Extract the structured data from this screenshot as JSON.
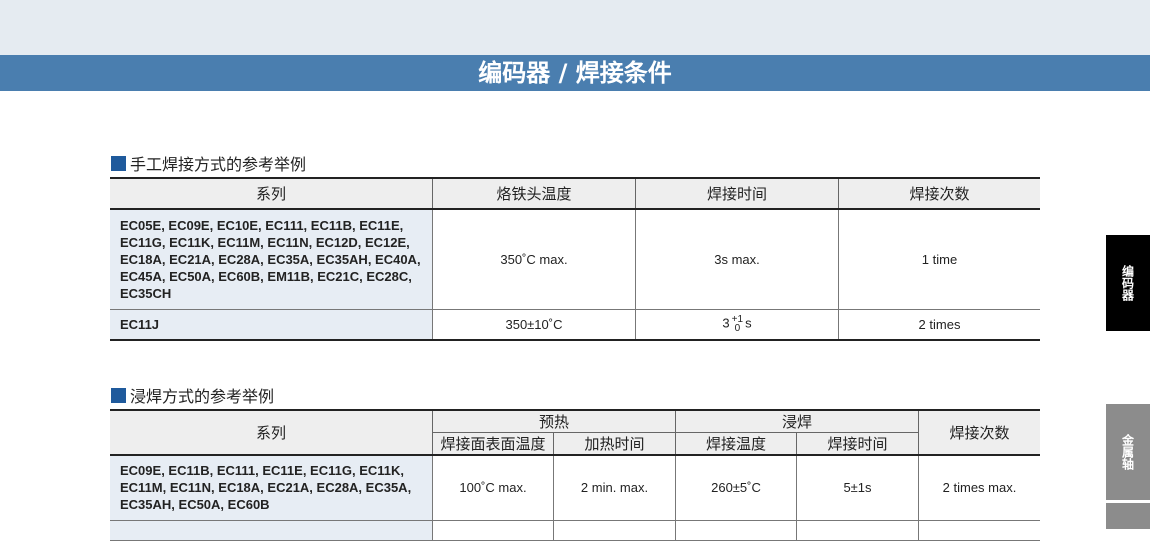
{
  "header": {
    "title": "编码器 / 焊接条件"
  },
  "section1": {
    "title": "手工焊接方式的参考举例",
    "columns": [
      "系列",
      "烙铁头温度",
      "焊接时间",
      "焊接次数"
    ],
    "rows": [
      {
        "series": "EC05E, EC09E, EC10E, EC111, EC11B, EC11E, EC11G, EC11K, EC11M, EC11N, EC12D, EC12E, EC18A, EC21A, EC28A, EC35A, EC35AH, EC40A, EC45A, EC50A, EC60B, EM11B, EC21C, EC28C, EC35CH",
        "temp": "350˚C max.",
        "time": "3s max.",
        "count": "1 time"
      },
      {
        "series": "EC11J",
        "temp": "350±10˚C",
        "time_base": "3",
        "time_sup": "+1",
        "time_sub": "0",
        "time_unit": "s",
        "count": "2 times"
      }
    ]
  },
  "section2": {
    "title": "浸焊方式的参考举例",
    "columns": {
      "series": "系列",
      "preheat": "预热",
      "dip": "浸焊",
      "count": "焊接次数",
      "pre_temp": "焊接面表面温度",
      "pre_time": "加热时间",
      "dip_temp": "焊接温度",
      "dip_time": "焊接时间"
    },
    "rows": [
      {
        "series": "EC09E, EC11B, EC111, EC11E, EC11G, EC11K, EC11M, EC11N, EC18A, EC21A, EC28A, EC35A, EC35AH, EC50A, EC60B",
        "pre_temp": "100˚C max.",
        "pre_time": "2 min. max.",
        "dip_temp": "260±5˚C",
        "dip_time": "5±1s",
        "count": "2 times max."
      }
    ]
  },
  "side_tabs": [
    {
      "label": "编码器",
      "active": true
    },
    {
      "label": "金属轴",
      "active": false
    }
  ]
}
